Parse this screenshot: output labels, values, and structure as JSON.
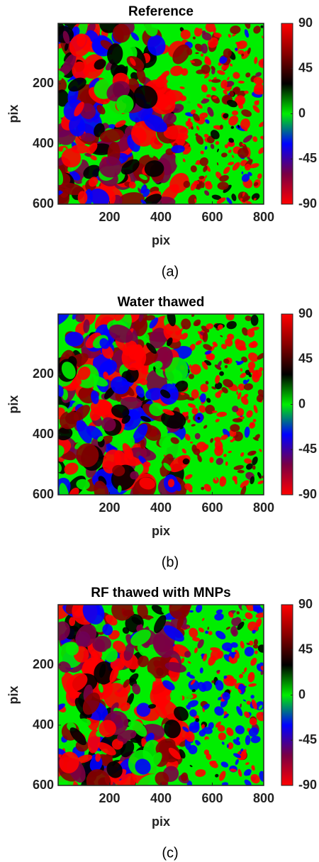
{
  "chart_data": [
    {
      "type": "image",
      "title": "Reference",
      "xlabel": "pix",
      "ylabel": "pix",
      "caption": "(a)",
      "xlim": [
        0,
        800
      ],
      "ylim": [
        0,
        600
      ],
      "y_reversed": true,
      "xticks": [
        200,
        400,
        600,
        800
      ],
      "yticks": [
        200,
        400,
        600
      ],
      "colorbar": {
        "clim": [
          -90,
          90
        ],
        "ticks": [
          90,
          45,
          0,
          -45,
          -90
        ],
        "colormap": [
          "#ff0000",
          "#7a0044",
          "#0000ff",
          "#00ee00",
          "#000000",
          "#880000",
          "#ff0000"
        ]
      }
    },
    {
      "type": "image",
      "title": "Water thawed",
      "xlabel": "pix",
      "ylabel": "pix",
      "caption": "(b)",
      "xlim": [
        0,
        800
      ],
      "ylim": [
        0,
        600
      ],
      "y_reversed": true,
      "xticks": [
        200,
        400,
        600,
        800
      ],
      "yticks": [
        200,
        400,
        600
      ],
      "colorbar": {
        "clim": [
          -90,
          90
        ],
        "ticks": [
          90,
          45,
          0,
          -45,
          -90
        ],
        "colormap": [
          "#ff0000",
          "#7a0044",
          "#0000ff",
          "#00ee00",
          "#000000",
          "#880000",
          "#ff0000"
        ]
      }
    },
    {
      "type": "image",
      "title": "RF thawed with MNPs",
      "xlabel": "pix",
      "ylabel": "pix",
      "caption": "(c)",
      "xlim": [
        0,
        800
      ],
      "ylim": [
        0,
        600
      ],
      "y_reversed": true,
      "xticks": [
        200,
        400,
        600,
        800
      ],
      "yticks": [
        200,
        400,
        600
      ],
      "colorbar": {
        "clim": [
          -90,
          90
        ],
        "ticks": [
          90,
          45,
          0,
          -45,
          -90
        ],
        "colormap": [
          "#ff0000",
          "#7a0044",
          "#0000ff",
          "#00ee00",
          "#000000",
          "#880000",
          "#ff0000"
        ]
      }
    }
  ]
}
